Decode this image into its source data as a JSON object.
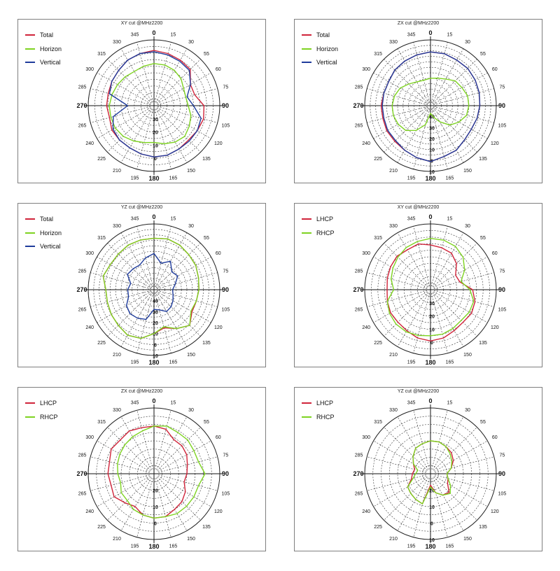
{
  "chart_data": [
    {
      "type": "line",
      "polar": true,
      "title": "XY cut @MHz2200",
      "angle_ticks": [
        0,
        15,
        30,
        55,
        60,
        75,
        90,
        105,
        120,
        135,
        150,
        165,
        180,
        195,
        210,
        225,
        240,
        265,
        270,
        285,
        300,
        315,
        330,
        345
      ],
      "radial_ticks": [
        "0",
        "10",
        "20",
        "30"
      ],
      "radial_tick_levels": [
        0,
        -10,
        -20,
        -30
      ],
      "rlim": [
        -40,
        10
      ],
      "legend_position": "top-left",
      "series": [
        {
          "name": "Total",
          "color": "#d0243a",
          "angles": [
            0,
            15,
            30,
            45,
            60,
            75,
            90,
            105,
            120,
            135,
            150,
            165,
            180,
            195,
            210,
            225,
            240,
            255,
            270,
            285,
            300,
            315,
            330,
            345
          ],
          "values": [
            2,
            1,
            0,
            -1,
            -8,
            -8,
            -2,
            -1,
            -2,
            -3,
            -2,
            -1,
            -1,
            -2,
            -3,
            -3,
            -3,
            -5,
            -4,
            -4,
            -3,
            -2,
            0,
            1
          ]
        },
        {
          "name": "Horizon",
          "color": "#7ed321",
          "angles": [
            0,
            15,
            30,
            45,
            60,
            75,
            90,
            105,
            120,
            135,
            150,
            165,
            180,
            195,
            210,
            225,
            240,
            255,
            270,
            285,
            300,
            315,
            330,
            345
          ],
          "values": [
            -8,
            -8,
            -9,
            -11,
            -14,
            -15,
            -14,
            -11,
            -9,
            -7,
            -8,
            -10,
            -12,
            -11,
            -9,
            -7,
            -6,
            -6,
            -6,
            -7,
            -8,
            -9,
            -10,
            -9
          ]
        },
        {
          "name": "Vertical",
          "color": "#1f3c9c",
          "angles": [
            0,
            15,
            30,
            45,
            60,
            75,
            90,
            105,
            120,
            135,
            150,
            165,
            180,
            195,
            210,
            225,
            240,
            255,
            270,
            285,
            300,
            315,
            330,
            345
          ],
          "values": [
            1,
            0,
            -1,
            -2,
            -8,
            -14,
            -10,
            -3,
            -2,
            -2,
            -2,
            -1,
            -1,
            -2,
            -3,
            -3,
            -4,
            -8,
            -20,
            -5,
            -3,
            -2,
            0,
            1
          ]
        }
      ]
    },
    {
      "type": "line",
      "polar": true,
      "title": "ZX cut @MHz2200",
      "angle_ticks": [
        0,
        15,
        30,
        55,
        60,
        75,
        90,
        105,
        120,
        135,
        150,
        165,
        180,
        195,
        210,
        225,
        240,
        265,
        270,
        285,
        300,
        315,
        330,
        345
      ],
      "radial_ticks": [
        "10",
        "0",
        "10",
        "20",
        "30",
        "40"
      ],
      "radial_tick_levels": [
        10,
        0,
        -10,
        -20,
        -30,
        -40
      ],
      "rlim": [
        -50,
        10
      ],
      "legend_position": "top-left",
      "series": [
        {
          "name": "Total",
          "color": "#d0243a",
          "angles": [
            0,
            15,
            30,
            45,
            60,
            75,
            90,
            105,
            120,
            135,
            150,
            165,
            180,
            195,
            210,
            225,
            240,
            255,
            270,
            285,
            300,
            315,
            330,
            345
          ],
          "values": [
            -1,
            -1,
            -2,
            -2,
            -3,
            -4,
            -5,
            -6,
            -7,
            -6,
            -3,
            -2,
            1,
            -1,
            -3,
            -4,
            -4,
            -5,
            -5,
            -6,
            -6,
            -4,
            -3,
            -2
          ]
        },
        {
          "name": "Horizon",
          "color": "#7ed321",
          "angles": [
            0,
            15,
            30,
            45,
            60,
            75,
            90,
            105,
            120,
            135,
            150,
            165,
            180,
            195,
            210,
            225,
            240,
            255,
            270,
            285,
            300,
            315,
            330,
            345
          ],
          "values": [
            -25,
            -24,
            -22,
            -18,
            -17,
            -15,
            -15,
            -16,
            -20,
            -25,
            -33,
            -39,
            -43,
            -32,
            -24,
            -18,
            -16,
            -15,
            -15,
            -16,
            -18,
            -22,
            -25,
            -26
          ]
        },
        {
          "name": "Vertical",
          "color": "#1f3c9c",
          "angles": [
            0,
            15,
            30,
            45,
            60,
            75,
            90,
            105,
            120,
            135,
            150,
            165,
            180,
            195,
            210,
            225,
            240,
            255,
            270,
            285,
            300,
            315,
            330,
            345
          ],
          "values": [
            -1,
            -1,
            -2,
            -2,
            -3,
            -4,
            -5,
            -6,
            -7,
            -6,
            -3,
            -2,
            1,
            -1,
            -3,
            -5,
            -5,
            -6,
            -6,
            -6,
            -6,
            -4,
            -3,
            -2
          ]
        }
      ]
    },
    {
      "type": "line",
      "polar": true,
      "title": "YZ cut @MHz2200",
      "angle_ticks": [
        0,
        15,
        30,
        55,
        60,
        75,
        90,
        105,
        120,
        135,
        150,
        165,
        180,
        195,
        210,
        225,
        240,
        265,
        270,
        285,
        300,
        315,
        330,
        345
      ],
      "radial_ticks": [
        "10",
        "0",
        "10",
        "20",
        "30",
        "40"
      ],
      "radial_tick_levels": [
        10,
        0,
        -10,
        -20,
        -30,
        -40
      ],
      "rlim": [
        -50,
        10
      ],
      "legend_position": "top-left",
      "series": [
        {
          "name": "Total",
          "color": "#d0243a",
          "angles": [
            0,
            15,
            30,
            45,
            60,
            75,
            90,
            105,
            120,
            135,
            150,
            165,
            180,
            195,
            210,
            225,
            240,
            255,
            270,
            285,
            300,
            315,
            330,
            345
          ],
          "values": [
            -3,
            -2,
            -3,
            -5,
            -6,
            -8,
            -9,
            -10,
            -10,
            -4,
            -9,
            -14,
            -10,
            -4,
            -2,
            -4,
            -5,
            -6,
            -6,
            -2,
            -4,
            -4,
            -3,
            -3
          ]
        },
        {
          "name": "Horizon",
          "color": "#7ed321",
          "angles": [
            0,
            15,
            30,
            45,
            60,
            75,
            90,
            105,
            120,
            135,
            150,
            165,
            180,
            195,
            210,
            225,
            240,
            255,
            270,
            285,
            300,
            315,
            330,
            345
          ],
          "values": [
            -3,
            -2,
            -3,
            -5,
            -6,
            -8,
            -9,
            -10,
            -11,
            -4,
            -9,
            -15,
            -10,
            -4,
            -2,
            -4,
            -5,
            -6,
            -6,
            -2,
            -4,
            -4,
            -3,
            -3
          ]
        },
        {
          "name": "Vertical",
          "color": "#1f3c9c",
          "angles": [
            0,
            15,
            30,
            45,
            60,
            75,
            90,
            105,
            120,
            135,
            150,
            165,
            180,
            195,
            210,
            225,
            240,
            255,
            270,
            285,
            300,
            315,
            330,
            345
          ],
          "values": [
            -17,
            -25,
            -20,
            -27,
            -25,
            -30,
            -33,
            -32,
            -30,
            -28,
            -27,
            -31,
            -32,
            -22,
            -20,
            -19,
            -21,
            -26,
            -26,
            -28,
            -22,
            -23,
            -24,
            -20
          ]
        }
      ]
    },
    {
      "type": "line",
      "polar": true,
      "title": "XY cut @MHz2200",
      "angle_ticks": [
        0,
        15,
        30,
        55,
        60,
        75,
        90,
        105,
        120,
        135,
        150,
        165,
        180,
        195,
        210,
        225,
        240,
        265,
        270,
        285,
        300,
        315,
        330,
        345
      ],
      "radial_ticks": [
        "0",
        "10",
        "20",
        "30"
      ],
      "radial_tick_levels": [
        0,
        -10,
        -20,
        -30
      ],
      "rlim": [
        -40,
        10
      ],
      "legend_position": "top-left",
      "series": [
        {
          "name": "LHCP",
          "color": "#d0243a",
          "angles": [
            0,
            15,
            30,
            45,
            60,
            75,
            90,
            105,
            120,
            135,
            150,
            165,
            180,
            195,
            210,
            225,
            240,
            255,
            270,
            285,
            300,
            315,
            330,
            345
          ],
          "values": [
            -6,
            -7,
            -8,
            -12,
            -18,
            -17,
            -8,
            -5,
            -4,
            -5,
            -4,
            -2,
            -1,
            -2,
            -4,
            -5,
            -5,
            -6,
            -7,
            -6,
            -5,
            -4,
            -5,
            -4
          ]
        },
        {
          "name": "RHCP",
          "color": "#7ed321",
          "angles": [
            0,
            15,
            30,
            45,
            60,
            75,
            90,
            105,
            120,
            135,
            150,
            165,
            180,
            195,
            210,
            225,
            240,
            255,
            270,
            285,
            300,
            315,
            330,
            345
          ],
          "values": [
            -1,
            -1,
            -2,
            -5,
            -10,
            -16,
            -10,
            -6,
            -6,
            -7,
            -6,
            -5,
            -5,
            -4,
            -3,
            -3,
            -4,
            -6,
            -12,
            -9,
            -7,
            -5,
            -3,
            -2
          ]
        }
      ]
    },
    {
      "type": "line",
      "polar": true,
      "title": "ZX cut @MHz2200",
      "angle_ticks": [
        0,
        15,
        30,
        55,
        60,
        75,
        90,
        105,
        120,
        135,
        150,
        165,
        180,
        195,
        210,
        225,
        240,
        265,
        270,
        285,
        300,
        315,
        330,
        345
      ],
      "radial_ticks": [
        "0",
        "10",
        "20"
      ],
      "radial_tick_levels": [
        0,
        -10,
        -20
      ],
      "rlim": [
        -30,
        10
      ],
      "legend_position": "top-left",
      "series": [
        {
          "name": "LHCP",
          "color": "#d0243a",
          "angles": [
            0,
            15,
            30,
            45,
            60,
            75,
            90,
            105,
            120,
            135,
            150,
            165,
            180,
            195,
            210,
            225,
            240,
            255,
            270,
            285,
            300,
            315,
            330,
            345
          ],
          "values": [
            -1,
            -2,
            -6,
            -6,
            -7,
            -9,
            -10,
            -11,
            -8,
            -6,
            -5,
            -3,
            -3,
            -4,
            -7,
            -5,
            -2,
            -3,
            -2,
            -2,
            0,
            -1,
            0,
            -1
          ]
        },
        {
          "name": "RHCP",
          "color": "#7ed321",
          "angles": [
            0,
            15,
            30,
            45,
            60,
            75,
            90,
            105,
            120,
            135,
            150,
            165,
            180,
            195,
            210,
            225,
            240,
            255,
            270,
            285,
            300,
            315,
            330,
            345
          ],
          "values": [
            -1,
            0,
            -1,
            -1,
            -2,
            -2,
            1,
            -2,
            -2,
            -2,
            -2,
            -3,
            -3,
            -4,
            -5,
            -7,
            -7,
            -9,
            -8,
            -7,
            -6,
            -5,
            -4,
            -3
          ]
        }
      ]
    },
    {
      "type": "line",
      "polar": true,
      "title": "YZ cut @MHz2200",
      "angle_ticks": [
        0,
        15,
        30,
        55,
        60,
        75,
        90,
        105,
        120,
        135,
        150,
        165,
        180,
        195,
        210,
        225,
        240,
        265,
        270,
        285,
        300,
        315,
        330,
        345
      ],
      "radial_ticks": [
        "10",
        "0",
        "10",
        "20"
      ],
      "radial_tick_levels": [
        10,
        0,
        -10,
        -20
      ],
      "rlim": [
        -30,
        10
      ],
      "legend_position": "top-left",
      "series": [
        {
          "name": "LHCP",
          "color": "#d0243a",
          "angles": [
            0,
            15,
            30,
            45,
            60,
            75,
            90,
            105,
            120,
            135,
            150,
            165,
            180,
            195,
            210,
            225,
            240,
            255,
            270,
            285,
            300,
            315,
            330,
            345
          ],
          "values": [
            -10,
            -10,
            -11,
            -12,
            -14,
            -17,
            -20,
            -19,
            -18,
            -14,
            -15,
            -18,
            -23,
            -11,
            -12,
            -13,
            -14,
            -18,
            -19,
            -20,
            -18,
            -15,
            -12,
            -11
          ]
        },
        {
          "name": "RHCP",
          "color": "#7ed321",
          "angles": [
            0,
            15,
            30,
            45,
            60,
            75,
            90,
            105,
            120,
            135,
            150,
            165,
            180,
            195,
            210,
            225,
            240,
            255,
            270,
            285,
            300,
            315,
            330,
            345
          ],
          "values": [
            -10,
            -10,
            -11,
            -13,
            -15,
            -17,
            -20,
            -19,
            -16,
            -13,
            -15,
            -18,
            -22,
            -11,
            -12,
            -13,
            -14,
            -19,
            -21,
            -22,
            -18,
            -15,
            -12,
            -11
          ]
        }
      ]
    }
  ]
}
